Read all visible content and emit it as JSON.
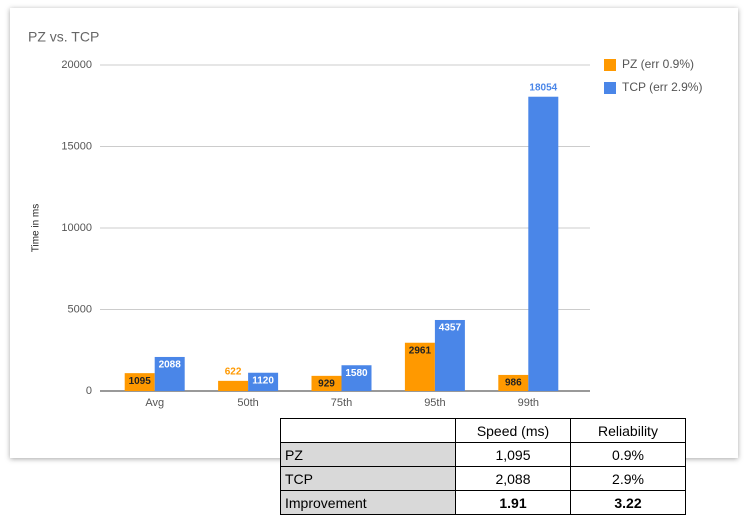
{
  "chart_data": {
    "type": "bar",
    "title": "PZ vs. TCP",
    "y_label": "Time in ms",
    "categories": [
      "Avg",
      "50th",
      "75th",
      "95th",
      "99th"
    ],
    "series": [
      {
        "name": "PZ (err 0.9%)",
        "color": "#ff9900",
        "values": [
          1095,
          622,
          929,
          2961,
          986
        ]
      },
      {
        "name": "TCP (err 2.9%)",
        "color": "#4a86e8",
        "values": [
          2088,
          1120,
          1580,
          4357,
          18054
        ]
      }
    ],
    "ylim": [
      0,
      20000
    ],
    "yticks": [
      0,
      5000,
      10000,
      15000,
      20000
    ],
    "grid": true,
    "legend": "right"
  },
  "table": {
    "columns": [
      "Speed (ms)",
      "Reliability"
    ],
    "rows": [
      {
        "label": "PZ",
        "cells": [
          "1,095",
          "0.9%"
        ]
      },
      {
        "label": "TCP",
        "cells": [
          "2,088",
          "2.9%"
        ]
      },
      {
        "label": "Improvement",
        "cells": [
          "1.91",
          "3.22"
        ]
      }
    ]
  }
}
